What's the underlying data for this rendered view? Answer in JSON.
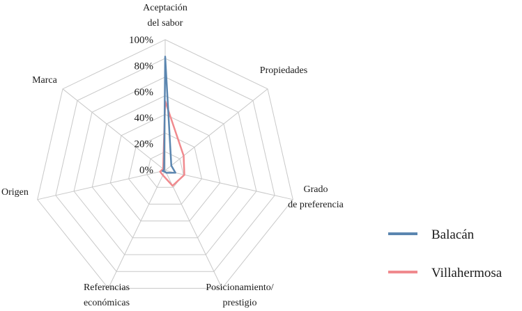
{
  "chart_data": {
    "type": "radar",
    "axes": [
      "Aceptación\ndel sabor",
      "Propiedades",
      "Grado\nde preferencia",
      "Posicionamiento/\nprestigio",
      "Referencias\neconómicas",
      "Origen",
      "Marca"
    ],
    "tick_labels": [
      "0%",
      "20%",
      "40%",
      "60%",
      "80%",
      "100%"
    ],
    "range": [
      0,
      100
    ],
    "grid_rings": 7,
    "series": [
      {
        "name": "Balacán",
        "color": "#5b86b0",
        "values": [
          87,
          6,
          8,
          2,
          1,
          2,
          1
        ]
      },
      {
        "name": "Villahermosa",
        "color": "#f08a8e",
        "values": [
          53,
          18,
          15,
          13,
          4,
          4,
          2
        ]
      }
    ],
    "legend_position": "right"
  }
}
